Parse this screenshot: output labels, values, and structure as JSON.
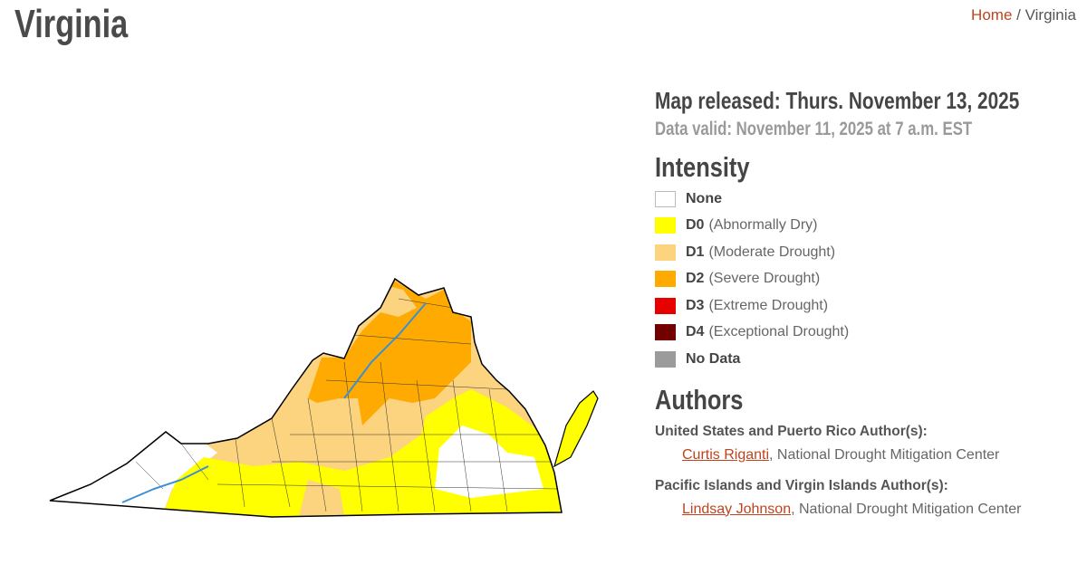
{
  "page": {
    "title": "Virginia"
  },
  "breadcrumb": {
    "home": "Home",
    "separator": "/",
    "current": "Virginia"
  },
  "map_info": {
    "released": "Map released: Thurs. November 13, 2025",
    "valid": "Data valid: November 11, 2025 at 7 a.m. EST"
  },
  "legend": {
    "title": "Intensity",
    "items": [
      {
        "code": "None",
        "desc": "",
        "color": "#ffffff"
      },
      {
        "code": "D0",
        "desc": "(Abnormally Dry)",
        "color": "#ffff00"
      },
      {
        "code": "D1",
        "desc": "(Moderate Drought)",
        "color": "#fcd37f"
      },
      {
        "code": "D2",
        "desc": "(Severe Drought)",
        "color": "#ffaa00"
      },
      {
        "code": "D3",
        "desc": "(Extreme Drought)",
        "color": "#e60000"
      },
      {
        "code": "D4",
        "desc": "(Exceptional Drought)",
        "color": "#730000"
      },
      {
        "code": "No Data",
        "desc": "",
        "color": "#9b9b9b"
      }
    ]
  },
  "authors": {
    "title": "Authors",
    "groups": [
      {
        "heading": "United States and Puerto Rico Author(s):",
        "name": "Curtis Riganti",
        "org": ", National Drought Mitigation Center"
      },
      {
        "heading": "Pacific Islands and Virgin Islands Author(s):",
        "name": "Lindsay Johnson",
        "org": ", National Drought Mitigation Center"
      }
    ]
  },
  "colors": {
    "link": "#c0431e"
  }
}
